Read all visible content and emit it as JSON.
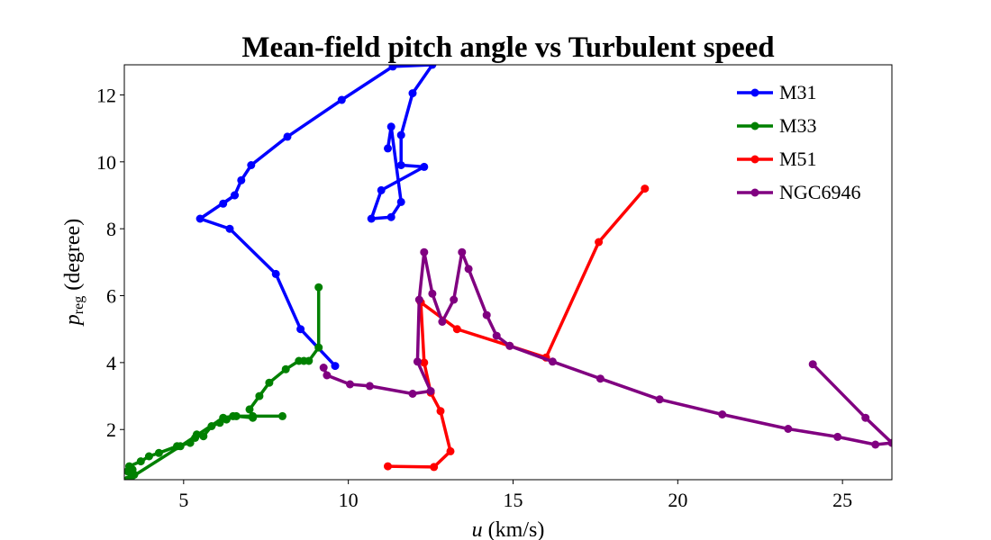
{
  "chart_data": {
    "type": "line",
    "title": "Mean-field pitch angle vs Turbulent speed",
    "xlabel": "u (km/s)",
    "xlabel_var": "u",
    "xlabel_unit": " (km/s)",
    "ylabel": "p_reg (degree)",
    "ylabel_var": "p",
    "ylabel_sub": "reg",
    "ylabel_unit": " (degree)",
    "xlim": [
      3.2,
      26.5
    ],
    "ylim": [
      0.5,
      12.9
    ],
    "xticks": [
      5,
      10,
      15,
      20,
      25
    ],
    "yticks": [
      2,
      4,
      6,
      8,
      10,
      12
    ],
    "grid": false,
    "legend_position": "top-right",
    "series": [
      {
        "name": "M31",
        "color": "#0000ff",
        "x": [
          9.6,
          8.55,
          7.8,
          6.4,
          5.5,
          6.55,
          6.2,
          6.55,
          6.75,
          7.05,
          8.15,
          9.8,
          11.35,
          12.55,
          11.95,
          11.6,
          11.6,
          12.3,
          11.0,
          10.7,
          11.3,
          11.6,
          11.3,
          11.2
        ],
        "y": [
          3.9,
          5.0,
          6.65,
          8.0,
          8.3,
          9.0,
          8.75,
          9.0,
          9.45,
          9.9,
          10.75,
          11.85,
          12.85,
          12.9,
          12.05,
          10.8,
          9.9,
          9.85,
          9.15,
          8.3,
          8.35,
          8.8,
          11.05,
          10.4
        ]
      },
      {
        "name": "M33",
        "color": "#008000",
        "x": [
          9.1,
          9.1,
          8.8,
          8.65,
          8.5,
          8.1,
          7.6,
          7.3,
          7.0,
          7.1,
          6.6,
          6.3,
          6.1,
          5.85,
          5.6,
          5.4,
          5.35,
          5.2,
          4.8,
          4.25,
          3.95,
          3.7,
          3.35,
          3.45,
          3.3,
          3.5,
          3.4,
          3.3,
          4.9,
          6.2,
          6.5,
          7.1,
          8.0
        ],
        "y": [
          6.25,
          4.45,
          4.05,
          4.05,
          4.05,
          3.8,
          3.4,
          3.0,
          2.6,
          2.35,
          2.4,
          2.3,
          2.2,
          2.1,
          1.8,
          1.85,
          1.75,
          1.6,
          1.5,
          1.3,
          1.2,
          1.05,
          0.9,
          0.8,
          0.75,
          0.65,
          0.55,
          0.5,
          1.5,
          2.35,
          2.4,
          2.4,
          2.4
        ]
      },
      {
        "name": "M51",
        "color": "#ff0000",
        "x": [
          19.0,
          17.6,
          16.0,
          14.9,
          13.3,
          12.2,
          12.3,
          12.5,
          12.8,
          13.1,
          12.6,
          11.2
        ],
        "y": [
          9.2,
          7.6,
          4.15,
          4.5,
          5.0,
          5.8,
          4.0,
          3.1,
          2.55,
          1.35,
          0.88,
          0.9
        ]
      },
      {
        "name": "NGC6946",
        "color": "#800080",
        "x": [
          24.1,
          25.7,
          26.5,
          26.0,
          24.85,
          23.35,
          21.35,
          19.45,
          17.65,
          16.2,
          14.9,
          14.5,
          14.2,
          13.65,
          13.45,
          13.2,
          12.85,
          12.55,
          12.3,
          12.15,
          12.1,
          12.5,
          11.95,
          10.65,
          10.05,
          9.35,
          9.25
        ],
        "y": [
          3.95,
          2.35,
          1.6,
          1.55,
          1.78,
          2.02,
          2.45,
          2.9,
          3.52,
          4.03,
          4.5,
          4.8,
          5.42,
          6.8,
          7.3,
          5.88,
          5.22,
          6.06,
          7.3,
          5.88,
          4.03,
          3.15,
          3.07,
          3.3,
          3.35,
          3.62,
          3.85
        ]
      }
    ]
  }
}
